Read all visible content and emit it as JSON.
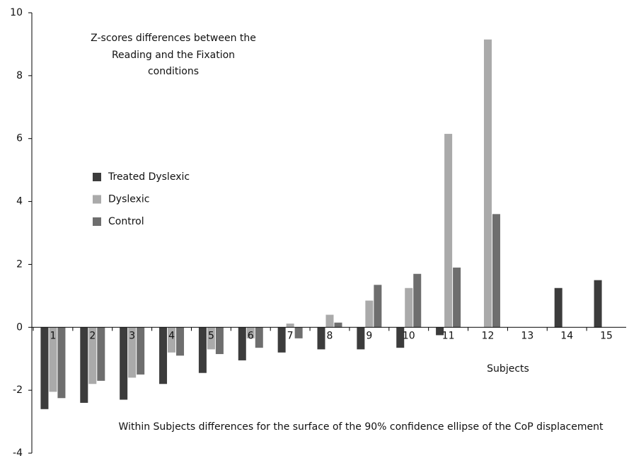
{
  "chart_data": {
    "type": "bar",
    "title": [
      "Z-scores differences between the",
      "Reading and the Fixation",
      "conditions"
    ],
    "x_label": "Subjects",
    "note": "Within Subjects differences for the surface of the 90% confidence ellipse of the CoP displacement",
    "categories": [
      "1",
      "2",
      "3",
      "4",
      "5",
      "6",
      "7",
      "8",
      "9",
      "10",
      "11",
      "12",
      "13",
      "14",
      "15"
    ],
    "series": [
      {
        "name": "Treated Dyslexic",
        "color": "#3c3c3c",
        "values": [
          -2.6,
          -2.4,
          -2.3,
          -1.8,
          -1.45,
          -1.05,
          -0.8,
          -0.7,
          -0.7,
          -0.65,
          -0.25,
          0,
          0,
          1.25,
          1.5
        ]
      },
      {
        "name": "Dyslexic",
        "color": "#aaaaaa",
        "values": [
          -2.05,
          -1.8,
          -1.6,
          -0.8,
          -0.7,
          -0.35,
          0.12,
          0.4,
          0.85,
          1.25,
          6.15,
          9.15,
          0,
          0,
          0
        ]
      },
      {
        "name": "Control",
        "color": "#6e6e6e",
        "values": [
          -2.25,
          -1.7,
          -1.5,
          -0.9,
          -0.85,
          -0.65,
          -0.35,
          0.15,
          1.35,
          1.7,
          1.9,
          3.6,
          0,
          0,
          0
        ]
      }
    ],
    "ylim": [
      -4,
      10
    ],
    "yticks": [
      -4,
      -2,
      0,
      2,
      4,
      6,
      8,
      10
    ],
    "legend": "left"
  }
}
